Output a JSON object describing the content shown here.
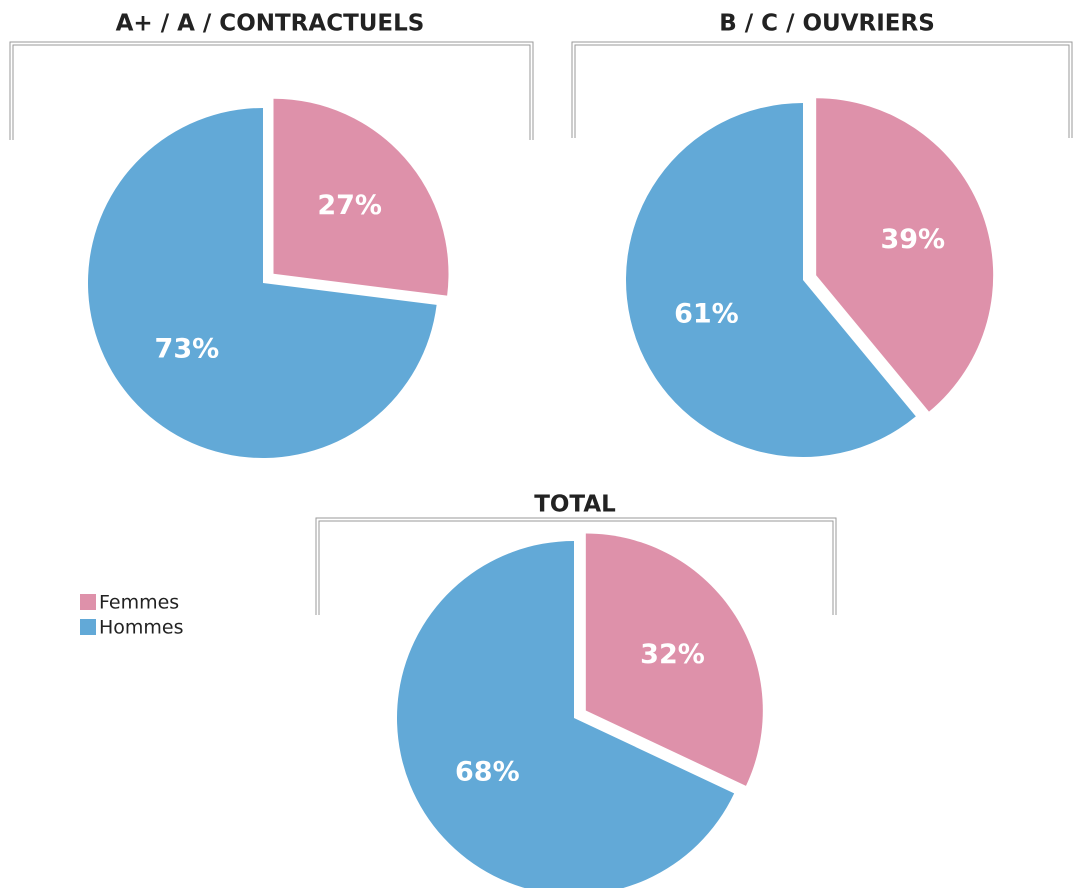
{
  "chart_data": [
    {
      "type": "pie",
      "title": "A+ / A / CONTRACTUELS",
      "categories": [
        "Femmes",
        "Hommes"
      ],
      "values": [
        27,
        73
      ],
      "value_labels": [
        "27%",
        "73%"
      ],
      "colors": [
        "#de91aa",
        "#62a9d7"
      ],
      "explode": [
        true,
        false
      ]
    },
    {
      "type": "pie",
      "title": "B / C / OUVRIERS",
      "categories": [
        "Femmes",
        "Hommes"
      ],
      "values": [
        39,
        61
      ],
      "value_labels": [
        "39%",
        "61%"
      ],
      "colors": [
        "#de91aa",
        "#62a9d7"
      ],
      "explode": [
        true,
        false
      ]
    },
    {
      "type": "pie",
      "title": "TOTAL",
      "categories": [
        "Femmes",
        "Hommes"
      ],
      "values": [
        32,
        68
      ],
      "value_labels": [
        "32%",
        "68%"
      ],
      "colors": [
        "#de91aa",
        "#62a9d7"
      ],
      "explode": [
        true,
        false
      ],
      "legend": "left"
    }
  ]
}
